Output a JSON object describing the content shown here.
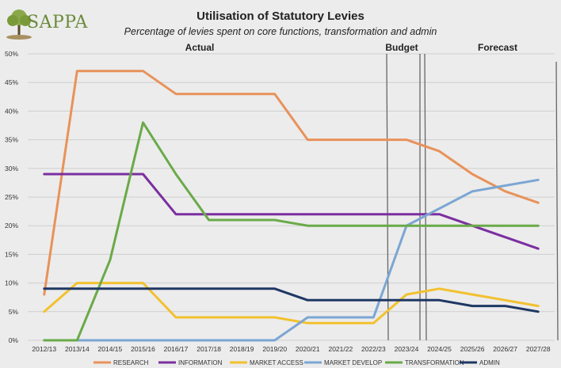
{
  "logo": {
    "text": "SAPPA"
  },
  "chart_data": {
    "type": "line",
    "title": "Utilisation of Statutory Levies",
    "subtitle": "Percentage of levies spent on core functions, transformation and admin",
    "xlabel": "",
    "ylabel": "",
    "categories": [
      "2012/13",
      "2013/14",
      "2014/15",
      "2015/16",
      "2016/17",
      "2017/18",
      "2018/19",
      "2019/20",
      "2020/21",
      "2021/22",
      "2022/23",
      "2023/24",
      "2024/25",
      "2025/26",
      "2026/27",
      "2027/28"
    ],
    "ylim": [
      0,
      50
    ],
    "yticks": [
      "0%",
      "5%",
      "10%",
      "15%",
      "20%",
      "25%",
      "30%",
      "35%",
      "40%",
      "45%",
      "50%"
    ],
    "grid": true,
    "legend_position": "bottom",
    "period_labels": [
      "Actual",
      "Budget",
      "Forecast"
    ],
    "series": [
      {
        "name": "RESEARCH",
        "color": "#e8925a",
        "values": [
          8,
          47,
          47,
          47,
          43,
          43,
          43,
          43,
          35,
          35,
          35,
          35,
          33,
          29,
          26,
          24
        ]
      },
      {
        "name": "INFORMATION",
        "color": "#7b2fa0",
        "values": [
          29,
          29,
          29,
          29,
          22,
          22,
          22,
          22,
          22,
          22,
          22,
          22,
          22,
          20,
          18,
          16
        ]
      },
      {
        "name": "MARKET ACCESS",
        "color": "#f2c12e",
        "values": [
          5,
          10,
          10,
          10,
          4,
          4,
          4,
          4,
          3,
          3,
          3,
          8,
          9,
          8,
          7,
          6
        ]
      },
      {
        "name": "MARKET DEVELOP",
        "color": "#7ba6d3",
        "values": [
          0,
          0,
          0,
          0,
          0,
          0,
          0,
          0,
          4,
          4,
          4,
          20,
          23,
          26,
          27,
          28
        ]
      },
      {
        "name": "TRANSFORMATION",
        "color": "#6aaa48",
        "values": [
          0,
          0,
          14,
          38,
          29,
          21,
          21,
          21,
          20,
          20,
          20,
          20,
          20,
          20,
          20,
          20
        ]
      },
      {
        "name": "ADMIN",
        "color": "#1f3864",
        "values": [
          9,
          9,
          9,
          9,
          9,
          9,
          9,
          9,
          7,
          7,
          7,
          7,
          7,
          6,
          6,
          5
        ]
      }
    ]
  }
}
